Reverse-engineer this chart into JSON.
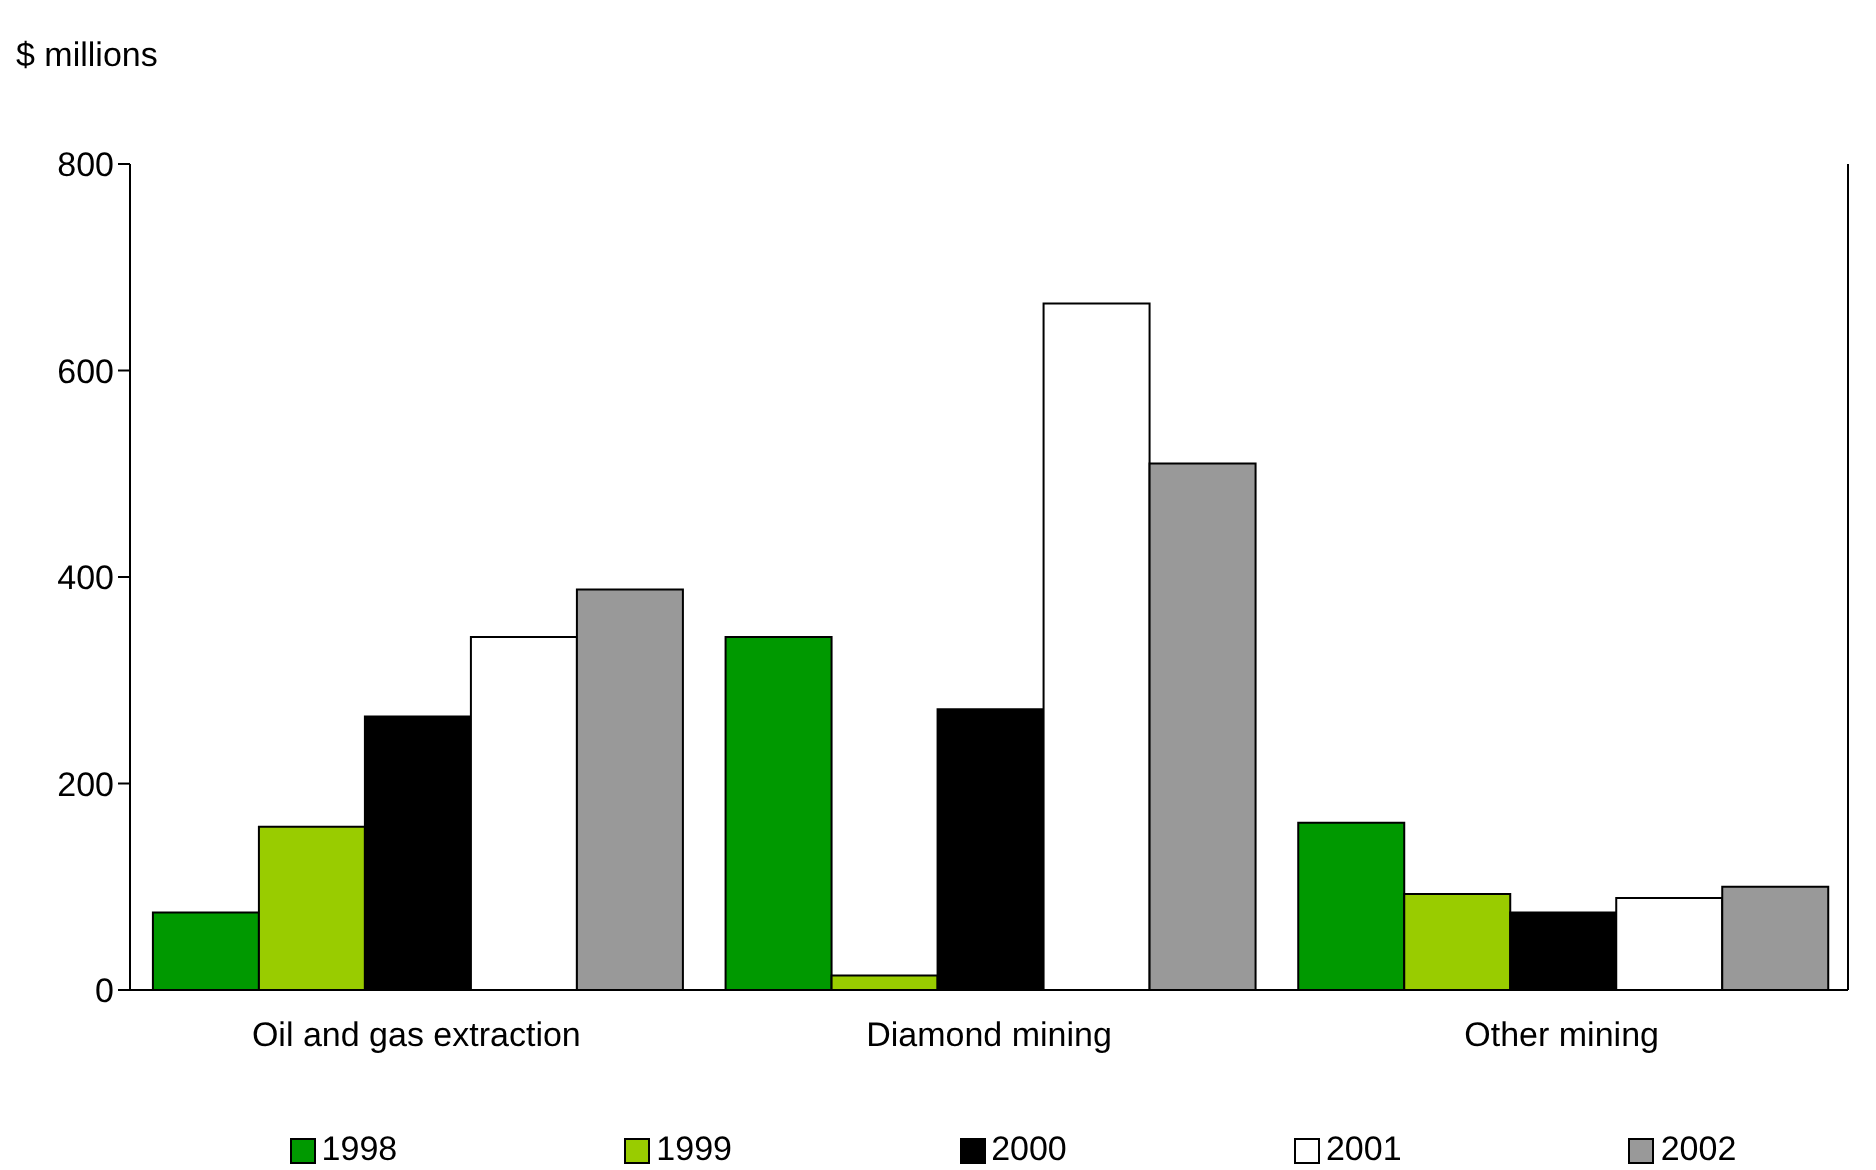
{
  "chart_data": {
    "type": "bar",
    "ylabel": "$ millions",
    "categories": [
      "Oil and gas extraction",
      "Diamond mining",
      "Other mining"
    ],
    "series": [
      {
        "name": "1998",
        "color": "#009900",
        "values": [
          75,
          342,
          162
        ]
      },
      {
        "name": "1999",
        "color": "#99cc00",
        "values": [
          158,
          14,
          93
        ]
      },
      {
        "name": "2000",
        "color": "#000000",
        "values": [
          265,
          272,
          75
        ]
      },
      {
        "name": "2001",
        "color": "#ffffff",
        "values": [
          342,
          665,
          89
        ]
      },
      {
        "name": "2002",
        "color": "#999999",
        "values": [
          388,
          510,
          100
        ]
      }
    ],
    "ylim": [
      0,
      800
    ],
    "yticks": [
      0,
      200,
      400,
      600,
      800
    ],
    "grid": false,
    "legend": "bottom"
  }
}
